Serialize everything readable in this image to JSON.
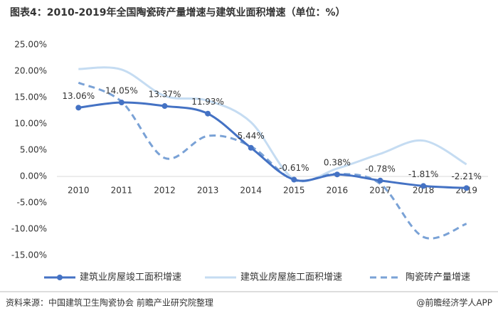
{
  "chart_data": {
    "type": "line",
    "title": "图表4：2010-2019年全国陶瓷砖产量增速与建筑业面积增速（单位：%）",
    "categories": [
      "2010",
      "2011",
      "2012",
      "2013",
      "2014",
      "2015",
      "2016",
      "2017",
      "2018",
      "2019"
    ],
    "series": [
      {
        "name": "建筑业房屋竣工面积增速",
        "color": "#4472c4",
        "style": "solid-marker",
        "values": [
          13.06,
          14.05,
          13.37,
          11.93,
          5.44,
          -0.61,
          0.38,
          -0.78,
          -1.81,
          -2.21
        ],
        "value_labels": [
          "13.06%",
          "14.05%",
          "13.37%",
          "11.93%",
          "5.44%",
          "-0.61%",
          "0.38%",
          "-0.78%",
          "-1.81%",
          "-2.21%"
        ]
      },
      {
        "name": "建筑业房屋施工面积增速",
        "color": "#c5dcf2",
        "style": "solid",
        "values": [
          20.4,
          20.3,
          15.3,
          14.4,
          10.3,
          -0.5,
          1.5,
          4.3,
          6.8,
          2.3
        ]
      },
      {
        "name": "陶瓷砖产量增速",
        "color": "#7aa2d6",
        "style": "dashed",
        "values": [
          17.8,
          14.2,
          3.5,
          7.7,
          5.7,
          -0.7,
          0.5,
          -1.4,
          -11.5,
          -9.0
        ]
      }
    ],
    "ylim": [
      -15,
      25
    ],
    "yticks": [
      {
        "value": -15,
        "label": "-15.00%"
      },
      {
        "value": -10,
        "label": "-10.00%"
      },
      {
        "value": -5,
        "label": "-5.00%"
      },
      {
        "value": 0,
        "label": "0.00%"
      },
      {
        "value": 5,
        "label": "5.00%"
      },
      {
        "value": 10,
        "label": "10.00%"
      },
      {
        "value": 15,
        "label": "15.00%"
      },
      {
        "value": 20,
        "label": "20.00%"
      },
      {
        "value": 25,
        "label": "25.00%"
      }
    ],
    "grid": false,
    "legend": "bottom",
    "source": "资料来源：中国建筑卫生陶瓷协会 前瞻产业研究院整理",
    "credit": "@前瞻经济学人APP"
  }
}
